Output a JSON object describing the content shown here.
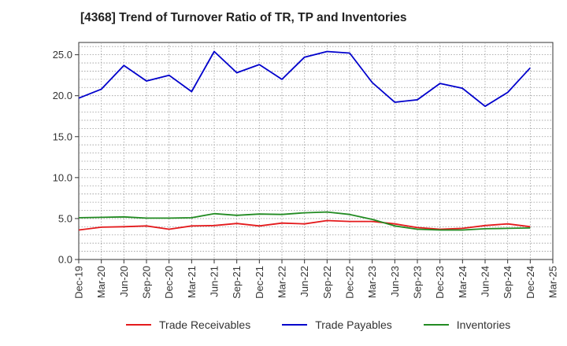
{
  "title": "[4368]  Trend of Turnover Ratio of TR, TP and Inventories",
  "chart_data": {
    "type": "line",
    "x": [
      "Dec-19",
      "Mar-20",
      "Jun-20",
      "Sep-20",
      "Dec-20",
      "Mar-21",
      "Jun-21",
      "Sep-21",
      "Dec-21",
      "Mar-22",
      "Jun-22",
      "Sep-22",
      "Dec-22",
      "Mar-23",
      "Jun-23",
      "Sep-23",
      "Dec-23",
      "Mar-24",
      "Jun-24",
      "Sep-24",
      "Dec-24",
      "Mar-25"
    ],
    "ylim": [
      0,
      26.5
    ],
    "yticks": [
      "0.0",
      "5.0",
      "10.0",
      "15.0",
      "20.0",
      "25.0"
    ],
    "grid": true,
    "legend_position": "bottom",
    "series": [
      {
        "name": "Trade Receivables",
        "color": "#e41a1c",
        "values": [
          3.6,
          3.95,
          4.0,
          4.1,
          3.7,
          4.1,
          4.15,
          4.4,
          4.1,
          4.45,
          4.35,
          4.75,
          4.65,
          4.65,
          4.35,
          3.9,
          3.7,
          3.8,
          4.15,
          4.35,
          4.0,
          null
        ]
      },
      {
        "name": "Trade Payables",
        "color": "#0000cc",
        "values": [
          19.7,
          20.8,
          23.7,
          21.8,
          22.5,
          20.5,
          25.4,
          22.8,
          23.8,
          22.0,
          24.7,
          25.4,
          25.2,
          21.6,
          19.2,
          19.5,
          21.5,
          20.9,
          18.7,
          20.4,
          23.4,
          null
        ]
      },
      {
        "name": "Inventories",
        "color": "#228b22",
        "values": [
          5.1,
          5.15,
          5.2,
          5.05,
          5.05,
          5.1,
          5.6,
          5.4,
          5.55,
          5.5,
          5.7,
          5.8,
          5.5,
          4.9,
          4.1,
          3.7,
          3.6,
          3.6,
          3.75,
          3.8,
          3.85,
          null
        ]
      }
    ]
  }
}
